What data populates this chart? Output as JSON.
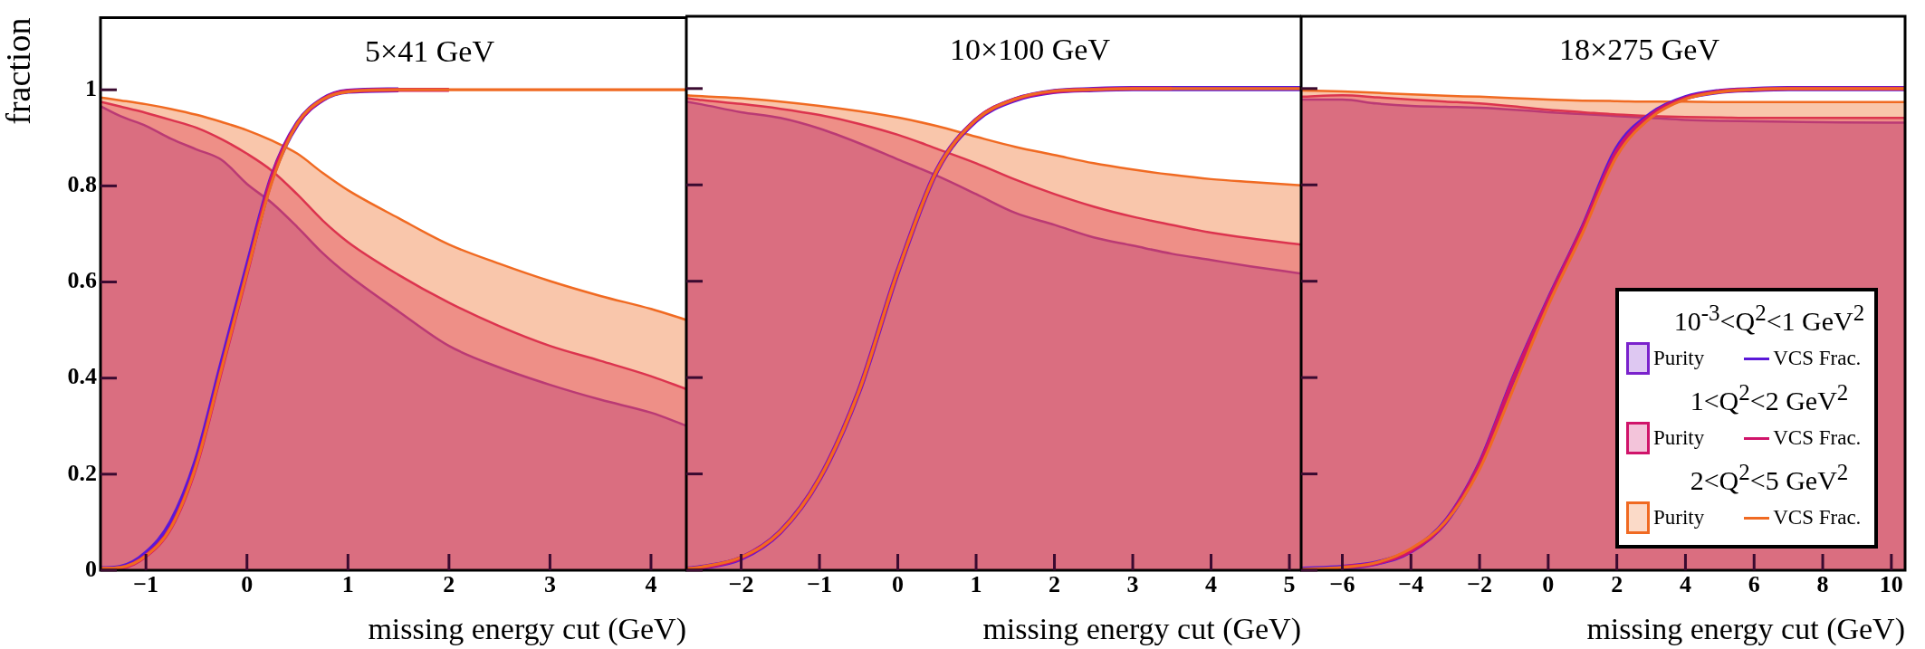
{
  "chart_data": [
    {
      "type": "area",
      "title": "5×41 GeV",
      "xlabel": "missing energy cut (GeV)",
      "ylabel": "fraction",
      "x": [
        -1.45,
        -1.25,
        -1,
        -0.75,
        -0.5,
        -0.25,
        0,
        0.25,
        0.5,
        0.75,
        1,
        1.5,
        2,
        2.5,
        3,
        3.5,
        4,
        4.35
      ],
      "xlim": [
        -1.45,
        4.35
      ],
      "xticks": [
        -1,
        0,
        1,
        2,
        3,
        4
      ],
      "ylim": [
        0,
        1.15
      ],
      "yticks": [
        0,
        0.2,
        0.4,
        0.6,
        0.8,
        1
      ],
      "series": [
        {
          "color": "#7a22cc",
          "values": [
            0.966,
            0.945,
            0.925,
            0.898,
            0.876,
            0.854,
            0.804,
            0.764,
            0.714,
            0.66,
            0.615,
            0.539,
            0.467,
            0.422,
            0.386,
            0.355,
            0.328,
            0.301
          ]
        },
        {
          "color": "#d0146a",
          "values": [
            0.975,
            0.965,
            0.952,
            0.937,
            0.921,
            0.897,
            0.867,
            0.831,
            0.782,
            0.728,
            0.683,
            0.615,
            0.557,
            0.508,
            0.467,
            0.436,
            0.404,
            0.377
          ]
        },
        {
          "color": "#f06a22",
          "values": [
            0.984,
            0.978,
            0.97,
            0.96,
            0.948,
            0.933,
            0.916,
            0.894,
            0.867,
            0.827,
            0.791,
            0.733,
            0.678,
            0.638,
            0.602,
            0.571,
            0.544,
            0.521
          ]
        },
        {
          "type": "line",
          "color": "#5a18d8",
          "values": [
            0.003,
            0.006,
            0.035,
            0.1,
            0.23,
            0.43,
            0.63,
            0.82,
            0.93,
            0.98,
            0.997,
            1,
            null,
            null,
            null,
            null,
            null,
            null
          ]
        },
        {
          "type": "line",
          "color": "#d0146a",
          "values": [
            0.003,
            0.005,
            0.03,
            0.09,
            0.22,
            0.42,
            0.62,
            0.82,
            0.93,
            0.98,
            0.997,
            1,
            1,
            null,
            null,
            null,
            null,
            null
          ]
        },
        {
          "type": "line",
          "color": "#f06a22",
          "values": [
            0.004,
            0.006,
            0.03,
            0.09,
            0.22,
            0.42,
            0.62,
            0.81,
            0.93,
            0.98,
            0.996,
            1,
            1,
            1,
            1,
            1,
            1,
            1
          ]
        }
      ]
    },
    {
      "type": "area",
      "title": "10×100 GeV",
      "xlabel": "missing energy cut (GeV)",
      "tick_labels": "x",
      "x": [
        -2.7,
        -2.5,
        -2,
        -1.5,
        -1,
        -0.5,
        0,
        0.5,
        1,
        1.5,
        2,
        2.5,
        3,
        3.5,
        4,
        4.5,
        5.15
      ],
      "xlim": [
        -2.7,
        5.15
      ],
      "xticks": [
        -2,
        -1,
        0,
        1,
        2,
        3,
        4,
        5
      ],
      "ylim": [
        0,
        1.15
      ],
      "yticks": [
        0,
        0.2,
        0.4,
        0.6,
        0.8,
        1
      ],
      "series": [
        {
          "color": "#7a22cc",
          "values": [
            0.973,
            0.967,
            0.951,
            0.939,
            0.917,
            0.887,
            0.853,
            0.819,
            0.781,
            0.742,
            0.717,
            0.691,
            0.674,
            0.657,
            0.644,
            0.631,
            0.616
          ]
        },
        {
          "color": "#d0146a",
          "values": [
            0.98,
            0.976,
            0.968,
            0.958,
            0.945,
            0.927,
            0.904,
            0.875,
            0.845,
            0.811,
            0.781,
            0.755,
            0.734,
            0.717,
            0.701,
            0.689,
            0.676
          ]
        },
        {
          "color": "#f06a22",
          "values": [
            0.986,
            0.984,
            0.98,
            0.973,
            0.964,
            0.953,
            0.94,
            0.922,
            0.9,
            0.879,
            0.862,
            0.845,
            0.832,
            0.821,
            0.812,
            0.806,
            0.799
          ]
        },
        {
          "type": "line",
          "color": "#5a18d8",
          "values": [
            0.002,
            0.006,
            0.025,
            0.08,
            0.19,
            0.37,
            0.62,
            0.83,
            0.934,
            0.977,
            0.994,
            0.998,
            1,
            1,
            1,
            1,
            1
          ]
        },
        {
          "type": "line",
          "color": "#d0146a",
          "values": [
            0.002,
            0.006,
            0.026,
            0.08,
            0.19,
            0.37,
            0.62,
            0.83,
            0.935,
            0.978,
            0.994,
            0.998,
            1,
            1,
            null,
            null,
            null
          ]
        },
        {
          "type": "line",
          "color": "#f06a22",
          "values": [
            0.003,
            0.007,
            0.027,
            0.08,
            0.19,
            0.37,
            0.62,
            0.83,
            0.935,
            0.978,
            0.995,
            0.998,
            1,
            1,
            1,
            1,
            1
          ]
        }
      ]
    },
    {
      "type": "area",
      "title": "18×275 GeV",
      "xlabel": "missing energy cut (GeV)",
      "tick_labels": "x",
      "legend": "bottom right",
      "annotations": [
        "10$^{-3}$<Q$^{2}$<1 GeV$^{2}$",
        "1<Q$^{2}$<2 GeV$^{2}$",
        "2<Q$^{2}$<5 GeV$^{2}$"
      ],
      "x": [
        -7.2,
        -6,
        -5,
        -4,
        -3,
        -2,
        -1,
        0,
        1,
        2,
        3,
        4,
        5,
        6,
        7,
        8,
        10.4
      ],
      "xlim": [
        -7.2,
        10.4
      ],
      "xticks": [
        -6,
        -4,
        -2,
        0,
        2,
        4,
        6,
        8,
        10
      ],
      "ylim": [
        0,
        1.15
      ],
      "yticks": [
        0,
        0.2,
        0.4,
        0.6,
        0.8,
        1
      ],
      "series": [
        {
          "name": "Purity",
          "color": "#7a22cc",
          "values": [
            0.977,
            0.977,
            0.969,
            0.964,
            0.962,
            0.96,
            0.956,
            0.951,
            0.947,
            0.943,
            0.939,
            0.935,
            0.933,
            0.932,
            0.931,
            0.93,
            0.929
          ]
        },
        {
          "name": "Purity",
          "color": "#d0146a",
          "values": [
            0.983,
            0.986,
            0.982,
            0.977,
            0.973,
            0.969,
            0.963,
            0.956,
            0.951,
            0.946,
            0.943,
            0.941,
            0.94,
            0.939,
            0.939,
            0.939,
            0.939
          ]
        },
        {
          "name": "Purity",
          "color": "#f06a22",
          "values": [
            0.996,
            0.994,
            0.991,
            0.988,
            0.985,
            0.983,
            0.98,
            0.977,
            0.975,
            0.974,
            0.973,
            0.973,
            0.972,
            0.972,
            0.972,
            0.972,
            0.972
          ]
        },
        {
          "type": "line",
          "name": "VCS Frac.",
          "color": "#5a18d8",
          "values": [
            0.002,
            0.006,
            0.015,
            0.04,
            0.1,
            0.22,
            0.4,
            0.56,
            0.71,
            0.875,
            0.947,
            0.981,
            0.994,
            0.998,
            1,
            1,
            1
          ]
        },
        {
          "type": "line",
          "name": "VCS Frac.",
          "color": "#d0146a",
          "values": [
            null,
            0.006,
            0.015,
            0.04,
            0.1,
            0.22,
            0.4,
            0.56,
            0.71,
            0.87,
            0.945,
            0.98,
            0.994,
            0.998,
            1,
            1,
            1
          ]
        },
        {
          "type": "line",
          "name": "VCS Frac.",
          "color": "#f06a22",
          "values": [
            0.002,
            0.006,
            0.016,
            0.045,
            0.1,
            0.21,
            0.38,
            0.55,
            0.7,
            0.86,
            0.94,
            0.978,
            0.993,
            0.998,
            1,
            1,
            1
          ]
        }
      ]
    }
  ]
}
